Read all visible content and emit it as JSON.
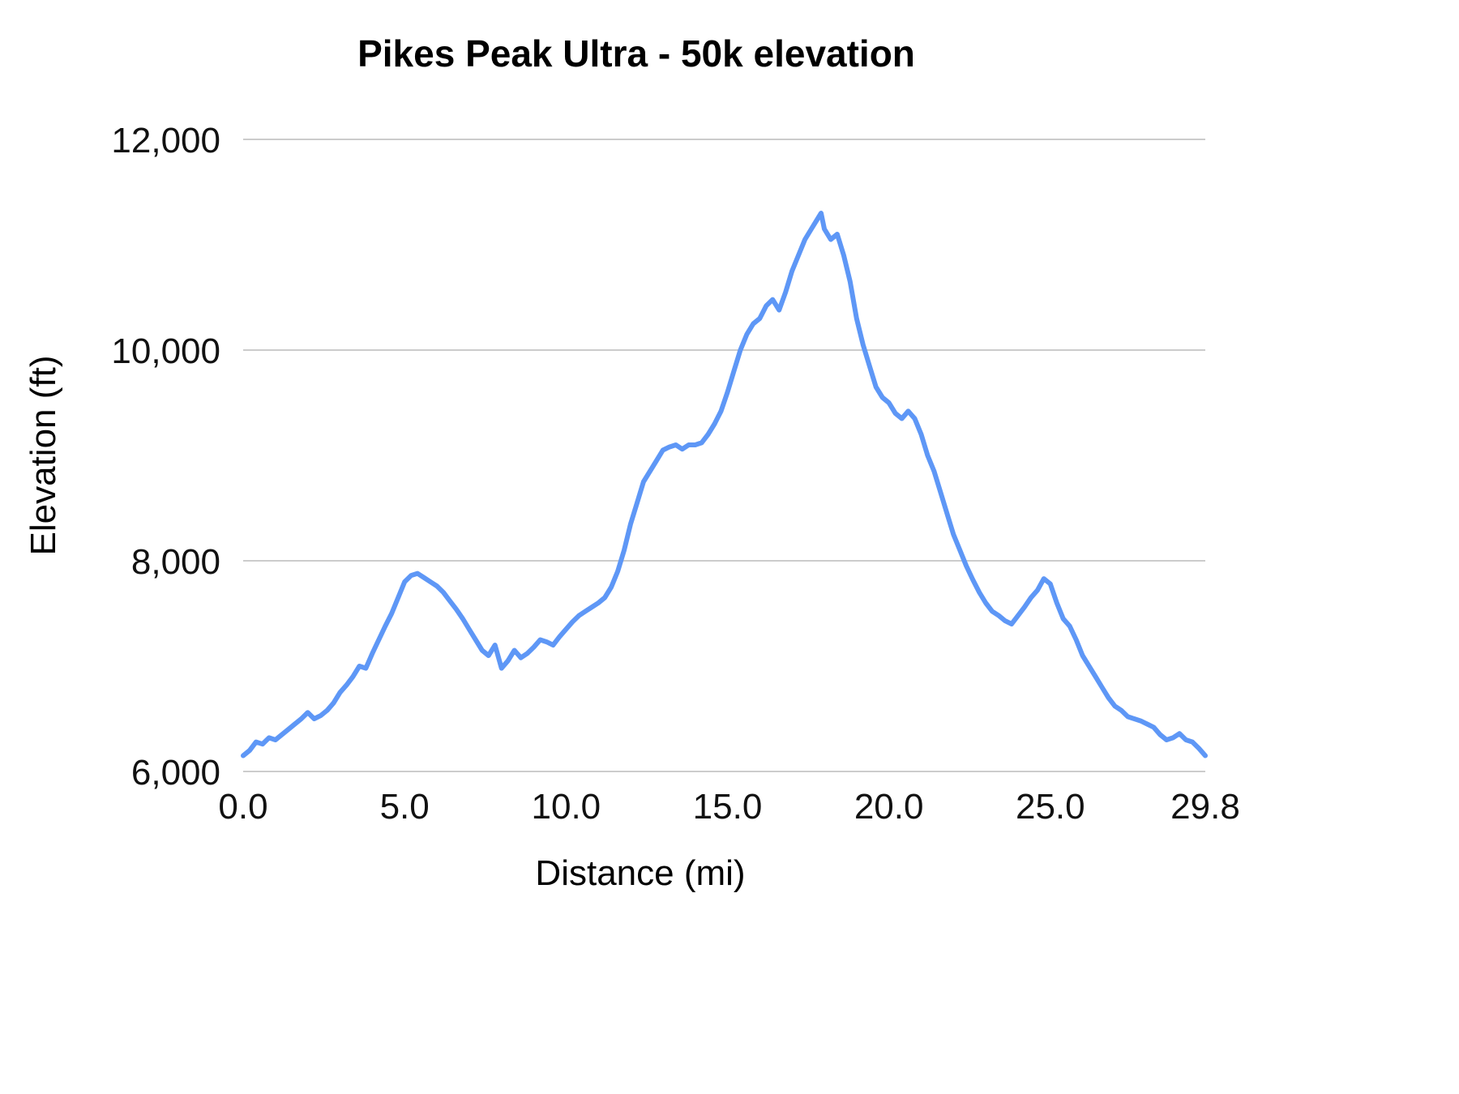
{
  "chart_data": {
    "type": "line",
    "title": "Pikes Peak Ultra - 50k elevation",
    "xlabel": "Distance (mi)",
    "ylabel": "Elevation (ft)",
    "xlim": [
      0,
      29.8
    ],
    "ylim": [
      6000,
      12000
    ],
    "grid": "horizontal",
    "legend": "none",
    "line_color": "#5e97f6",
    "grid_color": "#cccccc",
    "background_color": "#ffffff",
    "xticks": [
      {
        "value": 0.0,
        "label": "0.0"
      },
      {
        "value": 5.0,
        "label": "5.0"
      },
      {
        "value": 10.0,
        "label": "10.0"
      },
      {
        "value": 15.0,
        "label": "15.0"
      },
      {
        "value": 20.0,
        "label": "20.0"
      },
      {
        "value": 25.0,
        "label": "25.0"
      },
      {
        "value": 29.8,
        "label": "29.8"
      }
    ],
    "yticks": [
      {
        "value": 6000,
        "label": "6,000"
      },
      {
        "value": 8000,
        "label": "8,000"
      },
      {
        "value": 10000,
        "label": "10,000"
      },
      {
        "value": 12000,
        "label": "12,000"
      }
    ],
    "series": [
      {
        "name": "elevation",
        "x": [
          0.0,
          0.2,
          0.4,
          0.6,
          0.8,
          1.0,
          1.2,
          1.4,
          1.6,
          1.8,
          2.0,
          2.2,
          2.4,
          2.6,
          2.8,
          3.0,
          3.2,
          3.4,
          3.6,
          3.8,
          4.0,
          4.2,
          4.4,
          4.6,
          4.8,
          5.0,
          5.2,
          5.4,
          5.6,
          5.8,
          6.0,
          6.2,
          6.4,
          6.6,
          6.8,
          7.0,
          7.2,
          7.4,
          7.6,
          7.8,
          8.0,
          8.2,
          8.4,
          8.6,
          8.8,
          9.0,
          9.2,
          9.4,
          9.6,
          9.8,
          10.0,
          10.2,
          10.4,
          10.6,
          10.8,
          11.0,
          11.2,
          11.4,
          11.6,
          11.8,
          12.0,
          12.2,
          12.4,
          12.6,
          12.8,
          13.0,
          13.2,
          13.4,
          13.6,
          13.8,
          14.0,
          14.2,
          14.4,
          14.6,
          14.8,
          15.0,
          15.2,
          15.4,
          15.6,
          15.8,
          16.0,
          16.2,
          16.4,
          16.6,
          16.8,
          17.0,
          17.2,
          17.4,
          17.6,
          17.8,
          17.9,
          18.0,
          18.2,
          18.4,
          18.6,
          18.8,
          19.0,
          19.2,
          19.4,
          19.6,
          19.8,
          20.0,
          20.2,
          20.4,
          20.6,
          20.8,
          21.0,
          21.2,
          21.4,
          21.6,
          21.8,
          22.0,
          22.2,
          22.4,
          22.6,
          22.8,
          23.0,
          23.2,
          23.4,
          23.6,
          23.8,
          24.0,
          24.2,
          24.4,
          24.6,
          24.8,
          25.0,
          25.2,
          25.4,
          25.6,
          25.8,
          26.0,
          26.2,
          26.4,
          26.6,
          26.8,
          27.0,
          27.2,
          27.4,
          27.6,
          27.8,
          28.0,
          28.2,
          28.4,
          28.6,
          28.8,
          29.0,
          29.2,
          29.4,
          29.6,
          29.8
        ],
        "y": [
          6150,
          6200,
          6280,
          6260,
          6320,
          6300,
          6350,
          6400,
          6450,
          6500,
          6560,
          6500,
          6530,
          6580,
          6650,
          6750,
          6820,
          6900,
          7000,
          6980,
          7120,
          7250,
          7380,
          7500,
          7650,
          7800,
          7860,
          7880,
          7840,
          7800,
          7760,
          7700,
          7620,
          7540,
          7450,
          7350,
          7250,
          7150,
          7100,
          7200,
          6980,
          7050,
          7150,
          7080,
          7120,
          7180,
          7250,
          7230,
          7200,
          7280,
          7350,
          7420,
          7480,
          7520,
          7560,
          7600,
          7650,
          7750,
          7900,
          8100,
          8350,
          8550,
          8750,
          8850,
          8950,
          9050,
          9080,
          9100,
          9060,
          9100,
          9100,
          9120,
          9200,
          9300,
          9420,
          9600,
          9800,
          10000,
          10150,
          10250,
          10300,
          10420,
          10480,
          10380,
          10550,
          10750,
          10900,
          11050,
          11150,
          11250,
          11300,
          11150,
          11050,
          11100,
          10900,
          10650,
          10300,
          10050,
          9850,
          9650,
          9550,
          9500,
          9400,
          9350,
          9420,
          9350,
          9200,
          9000,
          8850,
          8650,
          8450,
          8250,
          8100,
          7950,
          7820,
          7700,
          7600,
          7520,
          7480,
          7430,
          7400,
          7480,
          7560,
          7650,
          7720,
          7830,
          7780,
          7600,
          7450,
          7380,
          7250,
          7100,
          7000,
          6900,
          6800,
          6700,
          6620,
          6580,
          6520,
          6500,
          6480,
          6450,
          6420,
          6350,
          6300,
          6320,
          6360,
          6300,
          6280,
          6220,
          6150
        ]
      }
    ]
  }
}
